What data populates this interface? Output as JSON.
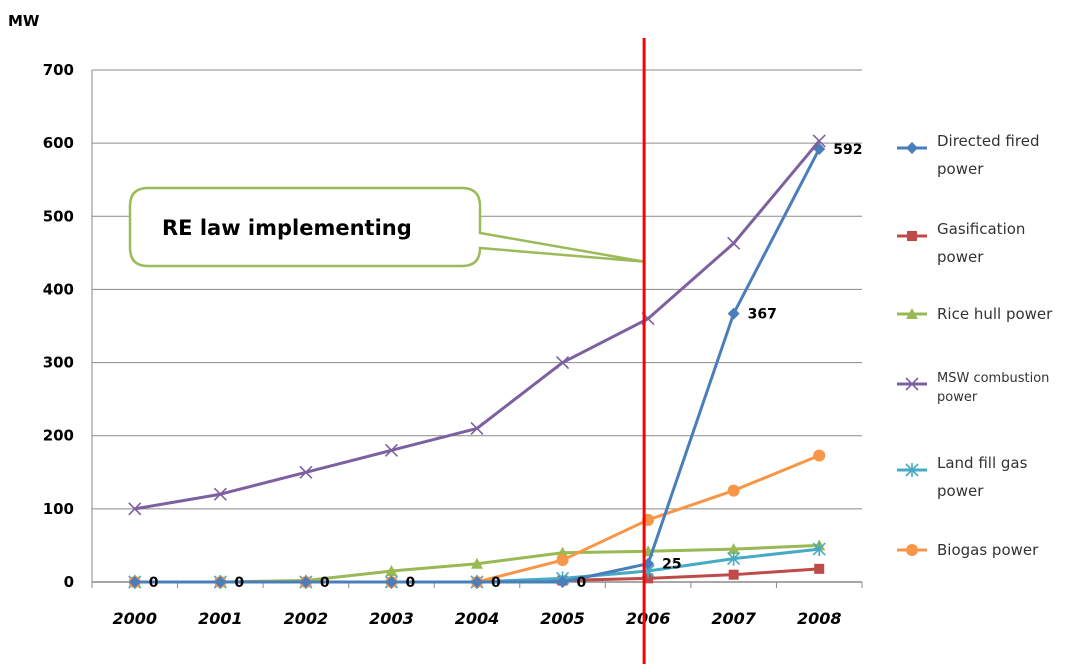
{
  "chart_data": {
    "type": "line",
    "title": "",
    "ylabel": "MW",
    "xlabel": "",
    "ylim": [
      0,
      700
    ],
    "yticks": [
      "0",
      "100",
      "200",
      "300",
      "400",
      "500",
      "600",
      "700"
    ],
    "categories": [
      "2000",
      "2001",
      "2002",
      "2003",
      "2004",
      "2005",
      "2006",
      "2007",
      "2008"
    ],
    "grid": "horizontal",
    "legend_position": "right",
    "series": [
      {
        "name": "Directed fired power",
        "color": "#4a7ebb",
        "marker": "diamond",
        "values": [
          0,
          0,
          0,
          0,
          0,
          0,
          25,
          367,
          592
        ]
      },
      {
        "name": "Gasification power",
        "color": "#be4b48",
        "marker": "square",
        "values": [
          0,
          0,
          0,
          0,
          0,
          2,
          5,
          10,
          18
        ]
      },
      {
        "name": "Rice  hull power",
        "color": "#98b954",
        "marker": "triangle",
        "values": [
          0,
          0,
          2,
          15,
          25,
          40,
          42,
          45,
          50
        ]
      },
      {
        "name": "MSW combustion power",
        "color": "#7d60a0",
        "marker": "x",
        "values": [
          100,
          120,
          150,
          180,
          210,
          300,
          360,
          463,
          603
        ]
      },
      {
        "name": "Land fill gas power",
        "color": "#46aac5",
        "marker": "star",
        "values": [
          0,
          0,
          0,
          0,
          0,
          5,
          15,
          32,
          45
        ]
      },
      {
        "name": "Biogas power",
        "color": "#f79646",
        "marker": "circle",
        "values": [
          0,
          0,
          0,
          0,
          0,
          30,
          85,
          125,
          173
        ]
      }
    ],
    "data_labels": [
      {
        "series": 0,
        "index": 0,
        "text": "0"
      },
      {
        "series": 0,
        "index": 1,
        "text": "0"
      },
      {
        "series": 0,
        "index": 2,
        "text": "0"
      },
      {
        "series": 0,
        "index": 3,
        "text": "0"
      },
      {
        "series": 0,
        "index": 4,
        "text": "0"
      },
      {
        "series": 0,
        "index": 5,
        "text": "0"
      },
      {
        "series": 0,
        "index": 6,
        "text": "25"
      },
      {
        "series": 0,
        "index": 7,
        "text": "367"
      },
      {
        "series": 0,
        "index": 8,
        "text": "592"
      }
    ],
    "annotation": {
      "text": "RE law implementing",
      "vertical_line_at": "2006",
      "line_color": "#ff0000"
    }
  }
}
